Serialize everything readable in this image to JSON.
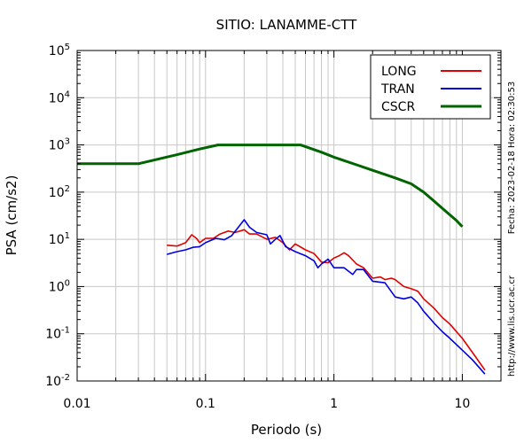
{
  "chart_data": {
    "type": "line",
    "title": "SITIO: LANAMME-CTT",
    "xlabel": "Periodo (s)",
    "ylabel": "PSA (cm/s2)",
    "x_scale": "log",
    "y_scale": "log",
    "xlim": [
      0.01,
      20
    ],
    "ylim": [
      0.01,
      100000
    ],
    "x_ticks": [
      {
        "value": 0.01,
        "label": "0.01"
      },
      {
        "value": 0.1,
        "label": "0.1"
      },
      {
        "value": 1,
        "label": "1"
      },
      {
        "value": 10,
        "label": "10"
      }
    ],
    "y_ticks": [
      {
        "value": 0.01,
        "base": "10",
        "exp": "-2"
      },
      {
        "value": 0.1,
        "base": "10",
        "exp": "-1"
      },
      {
        "value": 1,
        "base": "10",
        "exp": "0"
      },
      {
        "value": 10,
        "base": "10",
        "exp": "1"
      },
      {
        "value": 100,
        "base": "10",
        "exp": "2"
      },
      {
        "value": 1000,
        "base": "10",
        "exp": "3"
      },
      {
        "value": 10000,
        "base": "10",
        "exp": "4"
      },
      {
        "value": 100000,
        "base": "10",
        "exp": "5"
      }
    ],
    "grid": true,
    "legend_position": "top-right",
    "side_text": {
      "date": "Fecha: 2023-02-18 Hora: 02:30:53",
      "url": "http://www.lis.ucr.ac.cr"
    },
    "series": [
      {
        "name": "LONG",
        "color": "#e00000",
        "points": [
          [
            0.05,
            7.5
          ],
          [
            0.06,
            7.2
          ],
          [
            0.07,
            8.5
          ],
          [
            0.078,
            12.5
          ],
          [
            0.085,
            10.5
          ],
          [
            0.09,
            8.5
          ],
          [
            0.1,
            10.5
          ],
          [
            0.115,
            10.5
          ],
          [
            0.13,
            13
          ],
          [
            0.15,
            15
          ],
          [
            0.17,
            14
          ],
          [
            0.2,
            16
          ],
          [
            0.22,
            13
          ],
          [
            0.25,
            13
          ],
          [
            0.3,
            10
          ],
          [
            0.35,
            11
          ],
          [
            0.4,
            8.5
          ],
          [
            0.45,
            6
          ],
          [
            0.5,
            8
          ],
          [
            0.6,
            6
          ],
          [
            0.7,
            5
          ],
          [
            0.8,
            3.3
          ],
          [
            0.9,
            3.2
          ],
          [
            1.0,
            4
          ],
          [
            1.1,
            4.5
          ],
          [
            1.2,
            5.2
          ],
          [
            1.3,
            4.5
          ],
          [
            1.5,
            3
          ],
          [
            1.7,
            2.5
          ],
          [
            2.0,
            1.5
          ],
          [
            2.3,
            1.6
          ],
          [
            2.5,
            1.4
          ],
          [
            2.8,
            1.5
          ],
          [
            3.0,
            1.4
          ],
          [
            3.5,
            1.0
          ],
          [
            4.0,
            0.9
          ],
          [
            4.5,
            0.8
          ],
          [
            5.0,
            0.55
          ],
          [
            6.0,
            0.35
          ],
          [
            7.0,
            0.22
          ],
          [
            8.0,
            0.16
          ],
          [
            10.0,
            0.08
          ],
          [
            12.0,
            0.04
          ],
          [
            15.0,
            0.017
          ]
        ]
      },
      {
        "name": "TRAN",
        "color": "#0000dd",
        "points": [
          [
            0.05,
            4.8
          ],
          [
            0.06,
            5.5
          ],
          [
            0.07,
            6
          ],
          [
            0.08,
            6.8
          ],
          [
            0.09,
            7
          ],
          [
            0.1,
            8.5
          ],
          [
            0.12,
            10.5
          ],
          [
            0.14,
            9.8
          ],
          [
            0.16,
            12
          ],
          [
            0.18,
            18
          ],
          [
            0.2,
            26
          ],
          [
            0.22,
            18
          ],
          [
            0.25,
            14
          ],
          [
            0.3,
            12.5
          ],
          [
            0.32,
            8
          ],
          [
            0.35,
            10
          ],
          [
            0.38,
            12
          ],
          [
            0.42,
            7
          ],
          [
            0.5,
            5.5
          ],
          [
            0.6,
            4.5
          ],
          [
            0.7,
            3.5
          ],
          [
            0.75,
            2.5
          ],
          [
            0.8,
            3
          ],
          [
            0.9,
            3.8
          ],
          [
            1.0,
            2.5
          ],
          [
            1.2,
            2.5
          ],
          [
            1.4,
            1.8
          ],
          [
            1.5,
            2.3
          ],
          [
            1.7,
            2.3
          ],
          [
            2.0,
            1.3
          ],
          [
            2.5,
            1.2
          ],
          [
            3.0,
            0.6
          ],
          [
            3.5,
            0.55
          ],
          [
            4.0,
            0.6
          ],
          [
            4.5,
            0.45
          ],
          [
            5.0,
            0.3
          ],
          [
            6.0,
            0.17
          ],
          [
            7.0,
            0.11
          ],
          [
            8.0,
            0.08
          ],
          [
            10.0,
            0.045
          ],
          [
            12.0,
            0.028
          ],
          [
            15.0,
            0.014
          ]
        ]
      },
      {
        "name": "CSCR",
        "color": "#006400",
        "points": [
          [
            0.01,
            400
          ],
          [
            0.03,
            400
          ],
          [
            0.06,
            620
          ],
          [
            0.09,
            820
          ],
          [
            0.125,
            1000
          ],
          [
            0.55,
            1000
          ],
          [
            0.8,
            700
          ],
          [
            1.0,
            550
          ],
          [
            1.5,
            380
          ],
          [
            2.0,
            290
          ],
          [
            3.0,
            200
          ],
          [
            4.0,
            150
          ],
          [
            5.0,
            100
          ],
          [
            6.0,
            65
          ],
          [
            7.0,
            45
          ],
          [
            8.0,
            33
          ],
          [
            9.0,
            25
          ],
          [
            10.0,
            18.5
          ]
        ]
      }
    ]
  }
}
